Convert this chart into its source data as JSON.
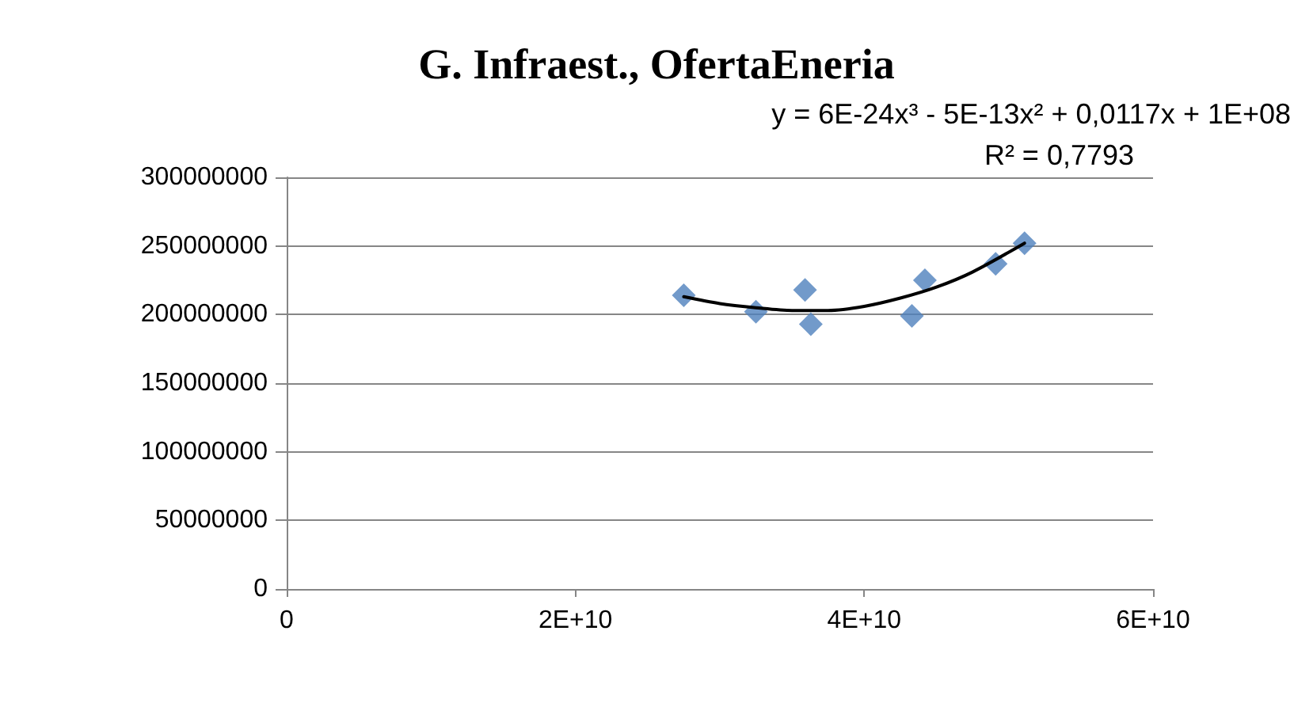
{
  "chart_data": {
    "type": "scatter",
    "title": "G. Infraest., OfertaEneria",
    "annotations": [
      "y = 6E-24x³ - 5E-13x² + 0,0117x + 1E+08",
      "R² = 0,7793"
    ],
    "series": [
      {
        "color": "#4f81bd",
        "marker": "diamond",
        "x": [
          27500000000,
          32500000000,
          35900000000,
          36300000000,
          43300000000,
          44200000000,
          49100000000,
          51100000000
        ],
        "values": [
          214000000,
          202000000,
          218000000,
          193000000,
          199000000,
          225000000,
          237000000,
          252000000
        ]
      },
      {
        "type": "line",
        "color": "#000000",
        "marker": "none",
        "line_style": "solid",
        "x": [
          27500000000,
          30000000000,
          32500000000,
          35000000000,
          37500000000,
          40000000000,
          42500000000,
          45000000000,
          47500000000,
          51100000000
        ],
        "values": [
          213000000,
          208000000,
          205000000,
          203000000,
          203000000,
          206000000,
          212000000,
          220000000,
          231000000,
          252000000
        ]
      }
    ],
    "xlim": [
      0,
      60000000000
    ],
    "xticks": [
      {
        "value": 0,
        "label": "0"
      },
      {
        "value": 20000000000,
        "label": "2E+10"
      },
      {
        "value": 40000000000,
        "label": "4E+10"
      },
      {
        "value": 60000000000,
        "label": "6E+10"
      }
    ],
    "ylim": [
      0,
      300000000
    ],
    "yticks": [
      0,
      50000000,
      100000000,
      150000000,
      200000000,
      250000000,
      300000000
    ],
    "grid": "y"
  }
}
